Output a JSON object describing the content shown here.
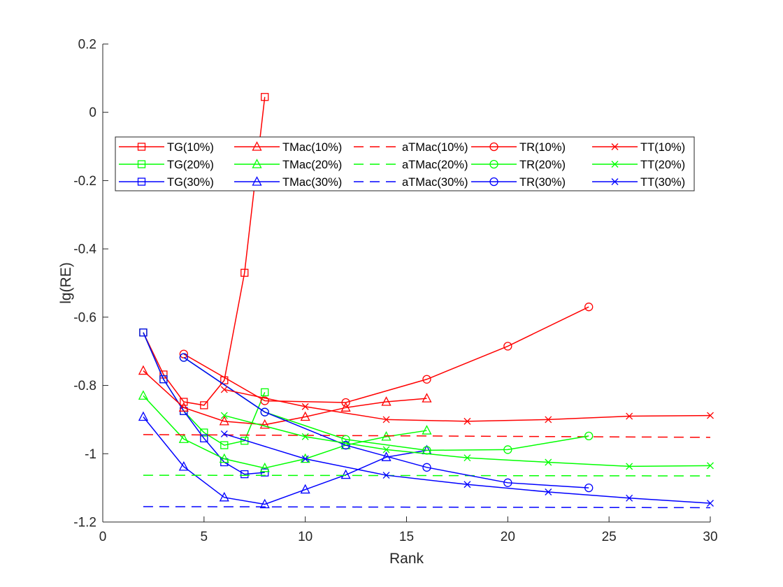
{
  "chart_data": {
    "type": "line",
    "title": "",
    "xlabel": "Rank",
    "ylabel": "lg(RE)",
    "xlim": [
      0,
      30
    ],
    "ylim": [
      -1.2,
      0.2
    ],
    "xticks": [
      0,
      5,
      10,
      15,
      20,
      25,
      30
    ],
    "xtick_labels": [
      "0",
      "5",
      "10",
      "15",
      "20",
      "25",
      "30"
    ],
    "yticks": [
      -1.2,
      -1.0,
      -0.8,
      -0.6,
      -0.4,
      -0.2,
      0,
      0.2
    ],
    "ytick_labels": [
      "-1.2",
      "-1",
      "-0.8",
      "-0.6",
      "-0.4",
      "-0.2",
      "0",
      "0.2"
    ],
    "grid": false,
    "legend_location": "upper-center",
    "legend_columns": 5,
    "series": [
      {
        "name": "TG(10%)",
        "color": "#ff0000",
        "marker": "square",
        "dash": false,
        "x": [
          2,
          3,
          4,
          5,
          6,
          7,
          8
        ],
        "y": [
          -0.645,
          -0.768,
          -0.848,
          -0.858,
          -0.785,
          -0.47,
          0.045
        ]
      },
      {
        "name": "TG(20%)",
        "color": "#00ff00",
        "marker": "square",
        "dash": false,
        "x": [
          2,
          3,
          4,
          5,
          6,
          7,
          8
        ],
        "y": [
          -0.645,
          -0.782,
          -0.875,
          -0.938,
          -0.975,
          -0.962,
          -0.82
        ]
      },
      {
        "name": "TG(30%)",
        "color": "#0000ff",
        "marker": "square",
        "dash": false,
        "x": [
          2,
          3,
          4,
          5,
          6,
          7,
          8
        ],
        "y": [
          -0.645,
          -0.782,
          -0.875,
          -0.955,
          -1.025,
          -1.06,
          -1.055
        ]
      },
      {
        "name": "TMac(10%)",
        "color": "#ff0000",
        "marker": "triangle",
        "dash": false,
        "x": [
          2,
          4,
          6,
          8,
          10,
          12,
          14,
          16
        ],
        "y": [
          -0.757,
          -0.865,
          -0.905,
          -0.915,
          -0.892,
          -0.865,
          -0.848,
          -0.838
        ]
      },
      {
        "name": "TMac(20%)",
        "color": "#00ff00",
        "marker": "triangle",
        "dash": false,
        "x": [
          2,
          4,
          6,
          8,
          10,
          12,
          14,
          16
        ],
        "y": [
          -0.83,
          -0.957,
          -1.015,
          -1.042,
          -1.015,
          -0.975,
          -0.95,
          -0.932
        ]
      },
      {
        "name": "TMac(30%)",
        "color": "#0000ff",
        "marker": "triangle",
        "dash": false,
        "x": [
          2,
          4,
          6,
          8,
          10,
          12,
          14,
          16
        ],
        "y": [
          -0.892,
          -1.038,
          -1.128,
          -1.148,
          -1.105,
          -1.062,
          -1.01,
          -0.99
        ]
      },
      {
        "name": "aTMac(10%)",
        "color": "#ff0000",
        "marker": "none",
        "dash": true,
        "x": [
          2,
          30
        ],
        "y": [
          -0.944,
          -0.952
        ]
      },
      {
        "name": "aTMac(20%)",
        "color": "#00ff00",
        "marker": "none",
        "dash": true,
        "x": [
          2,
          30
        ],
        "y": [
          -1.063,
          -1.065
        ]
      },
      {
        "name": "aTMac(30%)",
        "color": "#0000ff",
        "marker": "none",
        "dash": true,
        "x": [
          2,
          30
        ],
        "y": [
          -1.155,
          -1.158
        ]
      },
      {
        "name": "TR(10%)",
        "color": "#ff0000",
        "marker": "circle",
        "dash": false,
        "x": [
          4,
          8,
          12,
          16,
          20,
          24
        ],
        "y": [
          -0.708,
          -0.845,
          -0.85,
          -0.782,
          -0.685,
          -0.57
        ]
      },
      {
        "name": "TR(20%)",
        "color": "#00ff00",
        "marker": "circle",
        "dash": false,
        "x": [
          4,
          8,
          12,
          16,
          20,
          24
        ],
        "y": [
          -0.718,
          -0.878,
          -0.958,
          -0.99,
          -0.988,
          -0.948
        ]
      },
      {
        "name": "TR(30%)",
        "color": "#0000ff",
        "marker": "circle",
        "dash": false,
        "x": [
          4,
          8,
          12,
          16,
          20,
          24
        ],
        "y": [
          -0.718,
          -0.878,
          -0.975,
          -1.04,
          -1.085,
          -1.1
        ]
      },
      {
        "name": "TT(10%)",
        "color": "#ff0000",
        "marker": "x",
        "dash": false,
        "x": [
          6,
          10,
          14,
          18,
          22,
          26,
          30
        ],
        "y": [
          -0.812,
          -0.862,
          -0.9,
          -0.905,
          -0.9,
          -0.89,
          -0.888
        ]
      },
      {
        "name": "TT(20%)",
        "color": "#00ff00",
        "marker": "x",
        "dash": false,
        "x": [
          6,
          10,
          14,
          18,
          22,
          26,
          30
        ],
        "y": [
          -0.888,
          -0.95,
          -0.988,
          -1.012,
          -1.025,
          -1.037,
          -1.035
        ]
      },
      {
        "name": "TT(30%)",
        "color": "#0000ff",
        "marker": "x",
        "dash": false,
        "x": [
          6,
          10,
          14,
          18,
          22,
          26,
          30
        ],
        "y": [
          -0.942,
          -1.015,
          -1.063,
          -1.09,
          -1.112,
          -1.13,
          -1.145
        ]
      }
    ]
  }
}
